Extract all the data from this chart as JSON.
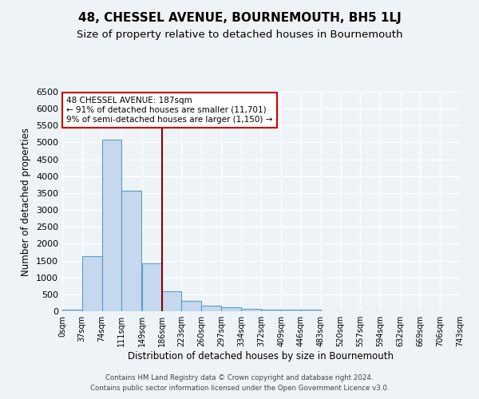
{
  "title": "48, CHESSEL AVENUE, BOURNEMOUTH, BH5 1LJ",
  "subtitle": "Size of property relative to detached houses in Bournemouth",
  "xlabel": "Distribution of detached houses by size in Bournemouth",
  "ylabel": "Number of detached properties",
  "bar_left_edges": [
    0,
    37,
    74,
    111,
    149,
    186,
    223,
    260,
    297,
    334,
    372,
    409,
    446,
    483,
    520,
    557,
    594,
    632,
    669,
    706
  ],
  "bar_heights": [
    50,
    1620,
    5080,
    3580,
    1420,
    580,
    310,
    155,
    110,
    70,
    55,
    50,
    45,
    0,
    0,
    0,
    0,
    0,
    0,
    0
  ],
  "bin_width": 37,
  "x_tick_labels": [
    "0sqm",
    "37sqm",
    "74sqm",
    "111sqm",
    "149sqm",
    "186sqm",
    "223sqm",
    "260sqm",
    "297sqm",
    "334sqm",
    "372sqm",
    "409sqm",
    "446sqm",
    "483sqm",
    "520sqm",
    "557sqm",
    "594sqm",
    "632sqm",
    "669sqm",
    "706sqm",
    "743sqm"
  ],
  "x_tick_positions": [
    0,
    37,
    74,
    111,
    149,
    186,
    223,
    260,
    297,
    334,
    372,
    409,
    446,
    483,
    520,
    557,
    594,
    632,
    669,
    706,
    743
  ],
  "ylim": [
    0,
    6500
  ],
  "yticks": [
    0,
    500,
    1000,
    1500,
    2000,
    2500,
    3000,
    3500,
    4000,
    4500,
    5000,
    5500,
    6000,
    6500
  ],
  "bar_color": "#c5d8ed",
  "bar_edge_color": "#5a9dc5",
  "vline_x": 187,
  "vline_color": "#8b0000",
  "annotation_title": "48 CHESSEL AVENUE: 187sqm",
  "annotation_line1": "← 91% of detached houses are smaller (11,701)",
  "annotation_line2": "9% of semi-detached houses are larger (1,150) →",
  "annotation_box_color": "#ffffff",
  "annotation_box_edge": "#cc0000",
  "footer1": "Contains HM Land Registry data © Crown copyright and database right 2024.",
  "footer2": "Contains public sector information licensed under the Open Government Licence v3.0.",
  "bg_color": "#eef3f8",
  "plot_bg_color": "#eef3f8",
  "grid_color": "#ffffff",
  "title_fontsize": 11,
  "subtitle_fontsize": 9.5
}
